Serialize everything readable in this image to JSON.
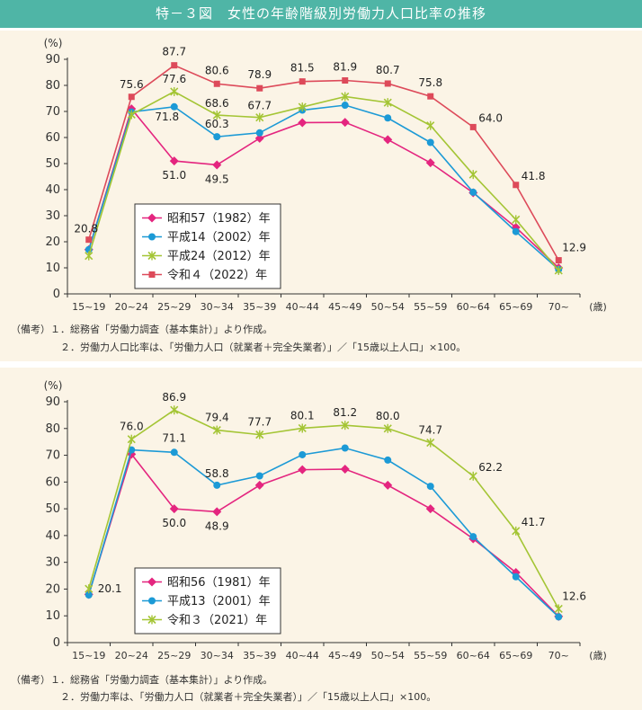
{
  "title": "特－３図　女性の年齢階級別労働力人口比率の推移",
  "chart_data": [
    {
      "type": "line",
      "ylabel": "(%)",
      "xlabel": "(歳)",
      "ylim": [
        0,
        90
      ],
      "yticks": [
        0,
        10,
        20,
        30,
        40,
        50,
        60,
        70,
        80,
        90
      ],
      "categories": [
        "15~19",
        "20~24",
        "25~29",
        "30~34",
        "35~39",
        "40~44",
        "45~49",
        "50~54",
        "55~59",
        "60~64",
        "65~69",
        "70~"
      ],
      "series": [
        {
          "name": "昭和57（1982）年",
          "color": "#e4257f",
          "marker": "diamond",
          "values": [
            17.0,
            71.0,
            51.0,
            49.5,
            59.7,
            65.7,
            65.8,
            59.2,
            50.3,
            38.8,
            25.5,
            10.0
          ]
        },
        {
          "name": "平成14（2002）年",
          "color": "#1c9ad6",
          "marker": "circle",
          "values": [
            17.0,
            69.8,
            71.8,
            60.3,
            61.8,
            70.5,
            72.4,
            67.5,
            58.1,
            39.0,
            23.9,
            9.4
          ]
        },
        {
          "name": "平成24（2012）年",
          "color": "#a4c535",
          "marker": "x",
          "values": [
            14.6,
            68.8,
            77.6,
            68.6,
            67.7,
            71.7,
            75.7,
            73.4,
            64.6,
            45.8,
            28.5,
            9.0
          ]
        },
        {
          "name": "令和４（2022）年",
          "color": "#dd4a5a",
          "marker": "square",
          "values": [
            20.8,
            75.6,
            87.7,
            80.6,
            78.9,
            81.5,
            81.9,
            80.7,
            75.8,
            64.0,
            41.8,
            12.9
          ]
        }
      ],
      "annotations": [
        {
          "text": "20.8",
          "series": 3,
          "index": 0
        },
        {
          "text": "75.6",
          "series": 3,
          "index": 1
        },
        {
          "text": "87.7",
          "series": 3,
          "index": 2
        },
        {
          "text": "80.6",
          "series": 3,
          "index": 3
        },
        {
          "text": "78.9",
          "series": 3,
          "index": 4
        },
        {
          "text": "81.5",
          "series": 3,
          "index": 5
        },
        {
          "text": "81.9",
          "series": 3,
          "index": 6
        },
        {
          "text": "80.7",
          "series": 3,
          "index": 7
        },
        {
          "text": "75.8",
          "series": 3,
          "index": 8
        },
        {
          "text": "64.0",
          "series": 3,
          "index": 9
        },
        {
          "text": "41.8",
          "series": 3,
          "index": 10
        },
        {
          "text": "12.9",
          "series": 3,
          "index": 11
        },
        {
          "text": "77.6",
          "series": 2,
          "index": 2
        },
        {
          "text": "68.6",
          "series": 2,
          "index": 3
        },
        {
          "text": "67.7",
          "series": 2,
          "index": 4
        },
        {
          "text": "71.8",
          "series": 1,
          "index": 2
        },
        {
          "text": "60.3",
          "series": 1,
          "index": 3
        },
        {
          "text": "51.0",
          "series": 0,
          "index": 2
        },
        {
          "text": "49.5",
          "series": 0,
          "index": 3
        }
      ],
      "legend_position": "bottom-left",
      "notes": [
        "（備考）１．総務省「労働力調査（基本集計）」より作成。",
        "２．労働力人口比率は、「労働力人口（就業者＋完全失業者）」／「15歳以上人口」×100。"
      ]
    },
    {
      "type": "line",
      "ylabel": "(%)",
      "xlabel": "(歳)",
      "ylim": [
        0,
        90
      ],
      "yticks": [
        0,
        10,
        20,
        30,
        40,
        50,
        60,
        70,
        80,
        90
      ],
      "categories": [
        "15~19",
        "20~24",
        "25~29",
        "30~34",
        "35~39",
        "40~44",
        "45~49",
        "50~54",
        "55~59",
        "60~64",
        "65~69",
        "70~"
      ],
      "series": [
        {
          "name": "昭和56（1981）年",
          "color": "#e4257f",
          "marker": "diamond",
          "values": [
            18.0,
            70.4,
            50.0,
            48.9,
            58.8,
            64.6,
            64.8,
            58.8,
            50.0,
            38.8,
            26.2,
            9.8
          ]
        },
        {
          "name": "平成13（2001）年",
          "color": "#1c9ad6",
          "marker": "circle",
          "values": [
            17.8,
            72.0,
            71.1,
            58.8,
            62.3,
            70.2,
            72.7,
            68.2,
            58.4,
            39.6,
            24.6,
            9.6
          ]
        },
        {
          "name": "令和３（2021）年",
          "color": "#a4c535",
          "marker": "x",
          "values": [
            20.1,
            76.0,
            86.9,
            79.4,
            77.7,
            80.1,
            81.2,
            80.0,
            74.7,
            62.2,
            41.7,
            12.6
          ]
        }
      ],
      "annotations": [
        {
          "text": "20.1",
          "series": 2,
          "index": 0
        },
        {
          "text": "76.0",
          "series": 2,
          "index": 1
        },
        {
          "text": "86.9",
          "series": 2,
          "index": 2
        },
        {
          "text": "79.4",
          "series": 2,
          "index": 3
        },
        {
          "text": "77.7",
          "series": 2,
          "index": 4
        },
        {
          "text": "80.1",
          "series": 2,
          "index": 5
        },
        {
          "text": "81.2",
          "series": 2,
          "index": 6
        },
        {
          "text": "80.0",
          "series": 2,
          "index": 7
        },
        {
          "text": "74.7",
          "series": 2,
          "index": 8
        },
        {
          "text": "62.2",
          "series": 2,
          "index": 9
        },
        {
          "text": "41.7",
          "series": 2,
          "index": 10
        },
        {
          "text": "12.6",
          "series": 2,
          "index": 11
        },
        {
          "text": "71.1",
          "series": 1,
          "index": 2
        },
        {
          "text": "58.8",
          "series": 1,
          "index": 3
        },
        {
          "text": "50.0",
          "series": 0,
          "index": 2
        },
        {
          "text": "48.9",
          "series": 0,
          "index": 3
        }
      ],
      "legend_position": "bottom-left",
      "notes": [
        "（備考）１．総務省「労働力調査（基本集計）」より作成。",
        "２．労働力率は、「労働力人口（就業者＋完全失業者）」／「15歳以上人口」×100。"
      ]
    }
  ]
}
